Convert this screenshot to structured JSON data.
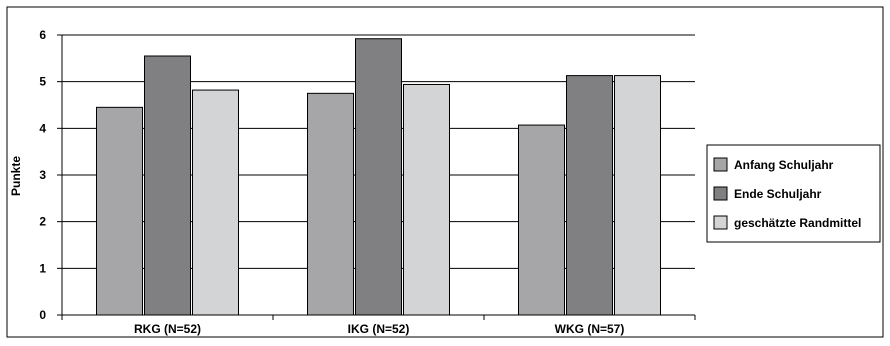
{
  "chart_data": {
    "type": "bar",
    "title": "",
    "xlabel": "",
    "ylabel": "Punkte",
    "ylim": [
      0,
      6
    ],
    "yticks": [
      0,
      1,
      2,
      3,
      4,
      5,
      6
    ],
    "grid": true,
    "legend_position": "right",
    "categories": [
      "RKG (N=52)",
      "IKG (N=52)",
      "WKG (N=57)"
    ],
    "series": [
      {
        "name": "Anfang Schuljahr",
        "color": "#a6a6a8",
        "values": [
          4.45,
          4.75,
          4.07
        ]
      },
      {
        "name": "Ende Schuljahr",
        "color": "#808083",
        "values": [
          5.55,
          5.92,
          5.13
        ]
      },
      {
        "name": "geschätzte Randmittel",
        "color": "#d3d4d6",
        "values": [
          4.82,
          4.94,
          5.13
        ]
      }
    ]
  }
}
